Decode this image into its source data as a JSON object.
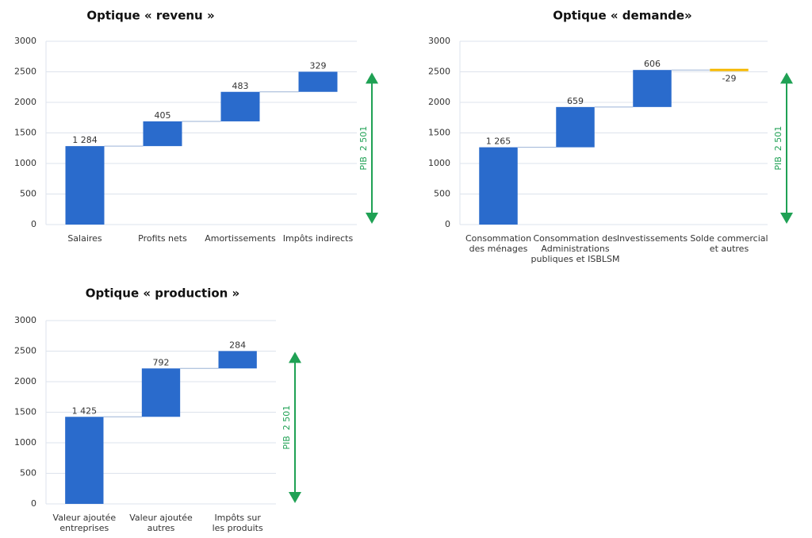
{
  "chart_data": [
    {
      "type": "waterfall",
      "title": "Optique « revenu »",
      "categories": [
        "Salaires",
        "Profits nets",
        "Amortissements",
        "Impôts indirects"
      ],
      "values": [
        1284,
        405,
        483,
        329
      ],
      "value_labels": [
        "1 284",
        "405",
        "483",
        "329"
      ],
      "color": "#2a6bcc",
      "negative_color": "#f5b800",
      "ylim": [
        0,
        3000
      ],
      "yticks": [
        0,
        500,
        1000,
        1500,
        2000,
        2500,
        3000
      ],
      "grid": true,
      "annotation": {
        "text": "PIB  2 501",
        "value": 2501,
        "color": "#1fa154"
      }
    },
    {
      "type": "waterfall",
      "title": "Optique « demande»",
      "categories": [
        "Consommation\ndes ménages",
        "Consommation des\nAdministrations\npubliques et ISBLSM",
        "Investissements",
        "Solde commercial\net autres"
      ],
      "values": [
        1265,
        659,
        606,
        -29
      ],
      "value_labels": [
        "1 265",
        "659",
        "606",
        "-29"
      ],
      "color": "#2a6bcc",
      "negative_color": "#f5b800",
      "ylim": [
        0,
        3000
      ],
      "yticks": [
        0,
        500,
        1000,
        1500,
        2000,
        2500,
        3000
      ],
      "grid": true,
      "annotation": {
        "text": "PIB  2 501",
        "value": 2501,
        "color": "#1fa154"
      }
    },
    {
      "type": "waterfall",
      "title": "Optique « production »",
      "categories": [
        "Valeur ajoutée\nentreprises",
        "Valeur ajoutée\nautres",
        "Impôts sur\nles produits"
      ],
      "values": [
        1425,
        792,
        284
      ],
      "value_labels": [
        "1 425",
        "792",
        "284"
      ],
      "color": "#2a6bcc",
      "negative_color": "#f5b800",
      "ylim": [
        0,
        3000
      ],
      "yticks": [
        0,
        500,
        1000,
        1500,
        2000,
        2500,
        3000
      ],
      "grid": true,
      "annotation": {
        "text": "PIB  2 501",
        "value": 2501,
        "color": "#1fa154"
      }
    }
  ]
}
